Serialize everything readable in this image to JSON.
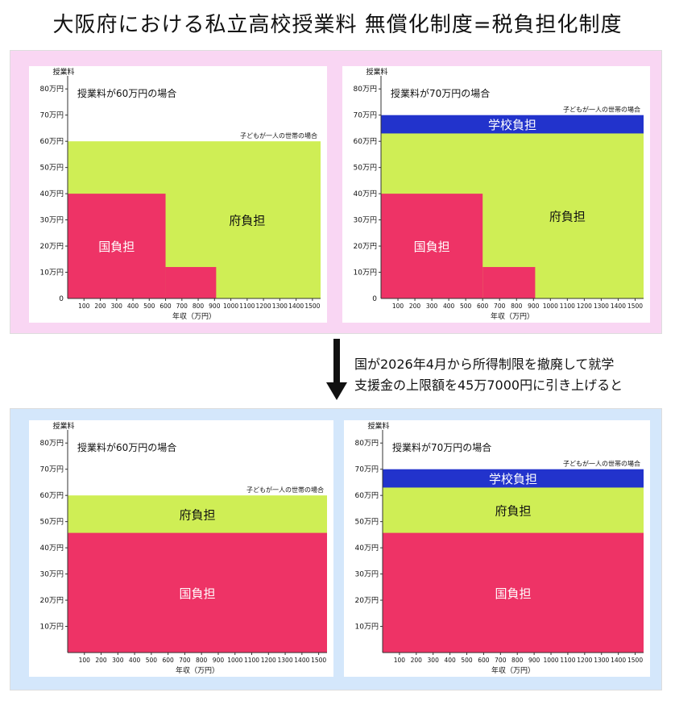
{
  "title": "大阪府における私立高校授業料 無償化制度=税負担化制度",
  "transition": {
    "line1": "国が2026年4月から所得制限を撤廃して就学",
    "line2": "支援金の上限額を45万7000円に引き上げると"
  },
  "colors": {
    "national": "#ee3366",
    "prefecture": "#cfee55",
    "school": "#2233cc",
    "top_band": "#f9d6f3",
    "bottom_band": "#d4e7fb"
  },
  "chart_data": [
    {
      "type": "area",
      "panel": "before-60",
      "ylabel": "授業料",
      "xlabel": "年収（万円）",
      "subtitle": "授業料が60万円の場合",
      "note": "子どもが一人の世帯の場合",
      "x_ticks": [
        "100",
        "200",
        "300",
        "400",
        "500",
        "600",
        "700",
        "800",
        "900",
        "1000",
        "1100",
        "1200",
        "1300",
        "1400",
        "1500"
      ],
      "y_ticks": [
        "10万円",
        "20万円",
        "30万円",
        "40万円",
        "50万円",
        "60万円",
        "70万円",
        "80万円"
      ],
      "zero_label": "0",
      "xlim": [
        0,
        1550
      ],
      "ylim": [
        0,
        85
      ],
      "series": [
        {
          "name": "国負担",
          "steps": [
            [
              0,
              600,
              40
            ],
            [
              600,
              910,
              12
            ]
          ]
        },
        {
          "name": "府負担",
          "top": 60
        }
      ]
    },
    {
      "type": "area",
      "panel": "before-70",
      "ylabel": "授業料",
      "xlabel": "年収（万円）",
      "subtitle": "授業料が70万円の場合",
      "note": "子どもが一人の世帯の場合",
      "x_ticks": [
        "100",
        "200",
        "300",
        "400",
        "500",
        "600",
        "700",
        "800",
        "900",
        "1000",
        "1100",
        "1200",
        "1300",
        "1400",
        "1500"
      ],
      "y_ticks": [
        "10万円",
        "20万円",
        "30万円",
        "40万円",
        "50万円",
        "60万円",
        "70万円",
        "80万円"
      ],
      "zero_label": "0",
      "xlim": [
        0,
        1550
      ],
      "ylim": [
        0,
        85
      ],
      "series": [
        {
          "name": "国負担",
          "steps": [
            [
              0,
              600,
              40
            ],
            [
              600,
              910,
              12
            ]
          ]
        },
        {
          "name": "府負担",
          "top": 63
        },
        {
          "name": "学校負担",
          "top": 70
        }
      ]
    },
    {
      "type": "area",
      "panel": "after-60",
      "ylabel": "授業料",
      "xlabel": "年収（万円）",
      "subtitle": "授業料が60万円の場合",
      "note": "子どもが一人の世帯の場合",
      "x_ticks": [
        "100",
        "200",
        "300",
        "400",
        "500",
        "600",
        "700",
        "800",
        "900",
        "1000",
        "1100",
        "1200",
        "1300",
        "1400",
        "1500"
      ],
      "y_ticks": [
        "10万円",
        "20万円",
        "30万円",
        "40万円",
        "50万円",
        "60万円",
        "70万円",
        "80万円"
      ],
      "zero_label": "",
      "xlim": [
        0,
        1550
      ],
      "ylim": [
        0,
        85
      ],
      "series": [
        {
          "name": "国負担",
          "steps": [
            [
              0,
              1550,
              45.7
            ]
          ]
        },
        {
          "name": "府負担",
          "top": 60
        }
      ]
    },
    {
      "type": "area",
      "panel": "after-70",
      "ylabel": "授業料",
      "xlabel": "年収（万円）",
      "subtitle": "授業料が70万円の場合",
      "note": "子どもが一人の世帯の場合",
      "x_ticks": [
        "100",
        "200",
        "300",
        "400",
        "500",
        "600",
        "700",
        "800",
        "900",
        "1000",
        "1100",
        "1200",
        "1300",
        "1400",
        "1500"
      ],
      "y_ticks": [
        "10万円",
        "20万円",
        "30万円",
        "40万円",
        "50万円",
        "60万円",
        "70万円",
        "80万円"
      ],
      "zero_label": "",
      "xlim": [
        0,
        1550
      ],
      "ylim": [
        0,
        85
      ],
      "series": [
        {
          "name": "国負担",
          "steps": [
            [
              0,
              1550,
              45.7
            ]
          ]
        },
        {
          "name": "府負担",
          "top": 63
        },
        {
          "name": "学校負担",
          "top": 70
        }
      ]
    }
  ]
}
